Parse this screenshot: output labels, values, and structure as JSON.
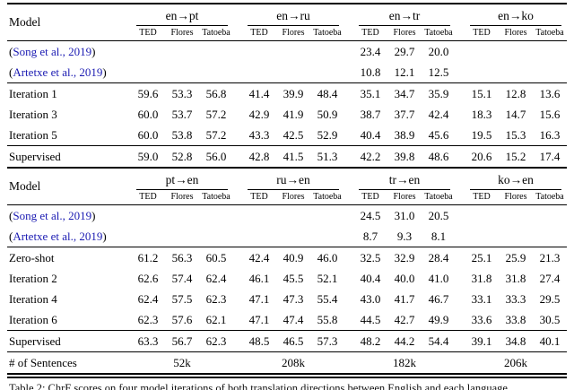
{
  "colors": {
    "citation_blue": "#1a1ab2",
    "rule_black": "#000000"
  },
  "model_header": "Model",
  "parens": {
    "open": "(",
    "close": ")"
  },
  "subcols": [
    "TED",
    "Flores",
    "Tatoeba"
  ],
  "table1": {
    "groups": [
      "en→pt",
      "en→ru",
      "en→tr",
      "en→ko"
    ],
    "citation_rows": [
      {
        "cite": "Song et al., 2019",
        "values": [
          "",
          "",
          "",
          "",
          "",
          "",
          "23.4",
          "29.7",
          "20.0",
          "",
          "",
          ""
        ]
      },
      {
        "cite": "Artetxe et al., 2019",
        "values": [
          "",
          "",
          "",
          "",
          "",
          "",
          "10.8",
          "12.1",
          "12.5",
          "",
          "",
          ""
        ]
      }
    ],
    "iteration_rows": [
      {
        "model": "Iteration 1",
        "values": [
          "59.6",
          "53.3",
          "56.8",
          "41.4",
          "39.9",
          "48.4",
          "35.1",
          "34.7",
          "35.9",
          "15.1",
          "12.8",
          "13.6"
        ]
      },
      {
        "model": "Iteration 3",
        "values": [
          "60.0",
          "53.7",
          "57.2",
          "42.9",
          "41.9",
          "50.9",
          "38.7",
          "37.7",
          "42.4",
          "18.3",
          "14.7",
          "15.6"
        ]
      },
      {
        "model": "Iteration 5",
        "values": [
          "60.0",
          "53.8",
          "57.2",
          "43.3",
          "42.5",
          "52.9",
          "40.4",
          "38.9",
          "45.6",
          "19.5",
          "15.3",
          "16.3"
        ]
      }
    ],
    "supervised_rows": [
      {
        "model": "Supervised",
        "values": [
          "59.0",
          "52.8",
          "56.0",
          "42.8",
          "41.5",
          "51.3",
          "42.2",
          "39.8",
          "48.6",
          "20.6",
          "15.2",
          "17.4"
        ]
      }
    ]
  },
  "table2": {
    "groups": [
      "pt→en",
      "ru→en",
      "tr→en",
      "ko→en"
    ],
    "citation_rows": [
      {
        "cite": "Song et al., 2019",
        "values": [
          "",
          "",
          "",
          "",
          "",
          "",
          "24.5",
          "31.0",
          "20.5",
          "",
          "",
          ""
        ]
      },
      {
        "cite": "Artetxe et al., 2019",
        "values": [
          "",
          "",
          "",
          "",
          "",
          "",
          "8.7",
          "9.3",
          "8.1",
          "",
          "",
          ""
        ]
      }
    ],
    "iteration_rows": [
      {
        "model": "Zero-shot",
        "values": [
          "61.2",
          "56.3",
          "60.5",
          "42.4",
          "40.9",
          "46.0",
          "32.5",
          "32.9",
          "28.4",
          "25.1",
          "25.9",
          "21.3"
        ]
      },
      {
        "model": "Iteration 2",
        "values": [
          "62.6",
          "57.4",
          "62.4",
          "46.1",
          "45.5",
          "52.1",
          "40.4",
          "40.0",
          "41.0",
          "31.8",
          "31.8",
          "27.4"
        ]
      },
      {
        "model": "Iteration 4",
        "values": [
          "62.4",
          "57.5",
          "62.3",
          "47.1",
          "47.3",
          "55.4",
          "43.0",
          "41.7",
          "46.7",
          "33.1",
          "33.3",
          "29.5"
        ]
      },
      {
        "model": "Iteration 6",
        "values": [
          "62.3",
          "57.6",
          "62.1",
          "47.1",
          "47.4",
          "55.8",
          "44.5",
          "42.7",
          "49.9",
          "33.6",
          "33.8",
          "30.5"
        ]
      }
    ],
    "supervised_rows": [
      {
        "model": "Supervised",
        "values": [
          "63.3",
          "56.7",
          "62.3",
          "48.5",
          "46.5",
          "57.3",
          "48.2",
          "44.2",
          "54.4",
          "39.1",
          "34.8",
          "40.1"
        ]
      }
    ],
    "sentences": {
      "label": "# of Sentences",
      "values": [
        "52k",
        "208k",
        "182k",
        "206k"
      ]
    }
  },
  "caption_partial": "Table 2: ChrF scores on four model iterations of both translation directions between English and each language."
}
